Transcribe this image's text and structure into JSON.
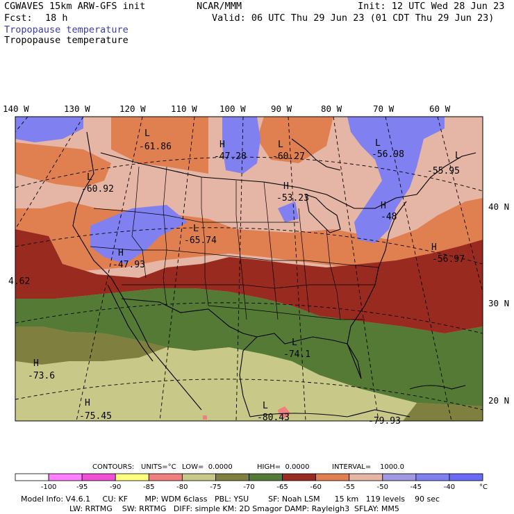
{
  "header": {
    "model": "CGWAVES 15km ARW-GFS init",
    "org": "NCAR/MMM",
    "init": "Init: 12 UTC Wed 28 Jun 23",
    "fcst_label": "Fcst:",
    "fcst_value": "18 h",
    "valid": "Valid: 06 UTC Thu 29 Jun 23 (01 CDT Thu 29 Jun 23)",
    "field_title_color": "Tropopause temperature",
    "field_title": "Tropopause temperature"
  },
  "map": {
    "lon_labels": [
      "140 W",
      "130 W",
      "120 W",
      "110 W",
      "100 W",
      "90 W",
      "80 W",
      "70 W",
      "60 W"
    ],
    "lat_labels": [
      "40 N",
      "30 N",
      "20 N"
    ],
    "extrema": [
      {
        "type": "L",
        "value": "-61.86"
      },
      {
        "type": "H",
        "value": "-47.28"
      },
      {
        "type": "L",
        "value": "-60.27"
      },
      {
        "type": "L",
        "value": "-56.98"
      },
      {
        "type": "L",
        "value": "-55.95"
      },
      {
        "type": "L",
        "value": "-60.92"
      },
      {
        "type": "H",
        "value": "-53.23"
      },
      {
        "type": "H",
        "value": "-48"
      },
      {
        "type": "L",
        "value": "-65.74"
      },
      {
        "type": "H",
        "value": "-47.93"
      },
      {
        "type": "H",
        "value": "-56.97"
      },
      {
        "type": "",
        "value": "4.62"
      },
      {
        "type": "H",
        "value": "-73.6"
      },
      {
        "type": "L",
        "value": "-74.1"
      },
      {
        "type": "H",
        "value": "-75.45"
      },
      {
        "type": "L",
        "value": "-80.43"
      },
      {
        "type": "",
        "value": "-79.93"
      }
    ]
  },
  "contours_line": {
    "contours": "CONTOURS:",
    "units": "UNITS=°C",
    "low": "LOW=  0.0000",
    "high": "HIGH=  0.0000",
    "interval": "INTERVAL=    1000.0"
  },
  "colorbar": {
    "colors": [
      "#ffffff",
      "#ff80ff",
      "#f050d8",
      "#ffff80",
      "#f08080",
      "#c8c888",
      "#7f7f3f",
      "#557a35",
      "#992a20",
      "#e08050",
      "#e5b5a5",
      "#a098e0",
      "#8080f0",
      "#6b6bf5"
    ],
    "labels": [
      "-100",
      "-95",
      "-90",
      "-85",
      "-80",
      "-75",
      "-70",
      "-65",
      "-60",
      "-55",
      "-50",
      "-45",
      "-40"
    ],
    "unit": "°C"
  },
  "footer": {
    "line1": "Model Info: V4.6.1     CU: KF       MP: WDM 6class   PBL: YSU        SF: Noah LSM      15 km   119 levels    90 sec",
    "line2": "LW: RRTMG    SW: RRTMG   DIFF: simple KM: 2D Smagor DAMP: Rayleigh3  SFLAY: MM5"
  }
}
